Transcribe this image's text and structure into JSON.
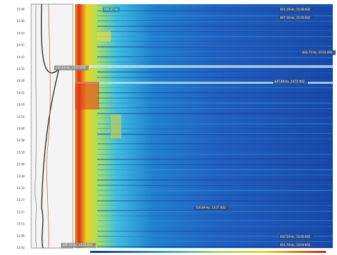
{
  "time_axis": {
    "labels": [
      "15:06",
      "15:00",
      "14:53",
      "14:47",
      "14:41",
      "14:35",
      "14:29",
      "14:22",
      "14:16",
      "14:10",
      "14:04",
      "13:58",
      "13:52",
      "13:46",
      "13:40",
      "13:33",
      "13:27",
      "13:21",
      "13:15",
      "13:09",
      "13:03"
    ]
  },
  "annotations": [
    {
      "text": "585.47 Hz",
      "style": "teal"
    },
    {
      "text": "601.19 Hz, 15:06:002",
      "style": "dark"
    },
    {
      "text": "667.16 Hz, 15:05:002",
      "style": "dark"
    },
    {
      "text": "822.75 Hz, 15:01:002",
      "style": "dark"
    },
    {
      "text": "143.13 Hz, 14:57:002",
      "style": "gray"
    },
    {
      "text": "847.88 Hz, 14:57:002",
      "style": "dark"
    },
    {
      "text": "516.69 Hz, 13:37:002",
      "style": "dark"
    },
    {
      "text": "642.59 Hz, 13:05:002",
      "style": "dark"
    },
    {
      "text": "601.79 Hz, 13:03:002",
      "style": "dark"
    },
    {
      "text": "155.13 Hz, 13:03:002",
      "style": "gray"
    }
  ]
}
